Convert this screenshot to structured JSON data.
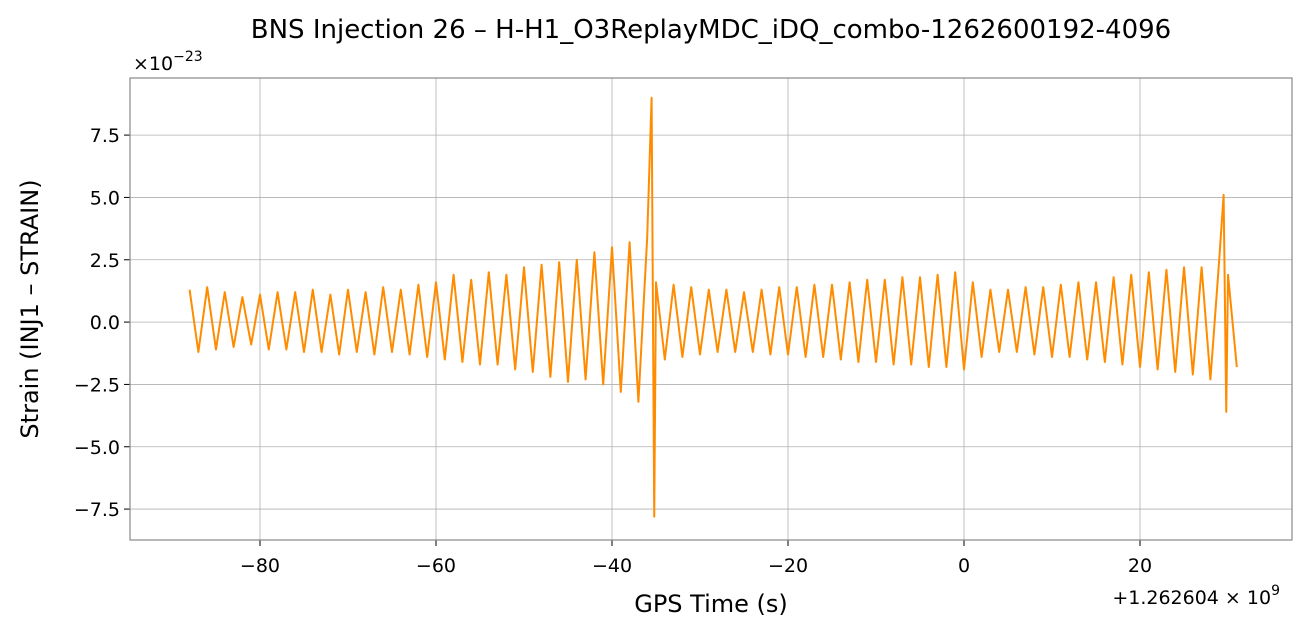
{
  "chart_data": {
    "type": "line",
    "title": "BNS Injection 26 – H-H1_O3ReplayMDC_iDQ_combo-1262600192-4096",
    "xlabel": "GPS Time (s)",
    "ylabel": "Strain (INJ1 – STRAIN)",
    "x_offset": {
      "base": "+1.262604 × 10",
      "exponent": "9"
    },
    "y_offset": {
      "base": "×10",
      "exponent": "−23"
    },
    "grid": true,
    "xlim": [
      -94.77,
      37.27
    ],
    "ylim": [
      -8.74,
      9.79
    ],
    "xticks": [
      {
        "value": -80,
        "label": "−80"
      },
      {
        "value": -60,
        "label": "−60"
      },
      {
        "value": -40,
        "label": "−40"
      },
      {
        "value": -20,
        "label": "−20"
      },
      0,
      20
    ],
    "yticks": [
      {
        "value": -7.5,
        "label": "−7.5"
      },
      {
        "value": -5,
        "label": "−5.0"
      },
      {
        "value": -2.5,
        "label": "−2.5"
      },
      {
        "value": 0,
        "label": "0.0"
      },
      {
        "value": 2.5,
        "label": "2.5"
      },
      {
        "value": 5,
        "label": "5.0"
      },
      {
        "value": 7.5,
        "label": "7.5"
      }
    ],
    "x": [
      -88,
      -87,
      -86,
      -85,
      -84,
      -83,
      -82,
      -81,
      -80,
      -79,
      -78,
      -77,
      -76,
      -75,
      -74,
      -73,
      -72,
      -71,
      -70,
      -69,
      -68,
      -67,
      -66,
      -65,
      -64,
      -63,
      -62,
      -61,
      -60,
      -59,
      -58,
      -57,
      -56,
      -55,
      -54,
      -53,
      -52,
      -51,
      -50,
      -49,
      -48,
      -47,
      -46,
      -45,
      -44,
      -43,
      -42,
      -41,
      -40,
      -39,
      -38,
      -37,
      -36,
      -35.5,
      -35.2,
      -35,
      -34,
      -33,
      -32,
      -31,
      -30,
      -29,
      -28,
      -27,
      -26,
      -25,
      -24,
      -23,
      -22,
      -21,
      -20,
      -19,
      -18,
      -17,
      -16,
      -15,
      -14,
      -13,
      -12,
      -11,
      -10,
      -9,
      -8,
      -7,
      -6,
      -5,
      -4,
      -3,
      -2,
      -1,
      0,
      1,
      2,
      3,
      4,
      5,
      6,
      7,
      8,
      9,
      10,
      11,
      12,
      13,
      14,
      15,
      16,
      17,
      18,
      19,
      20,
      21,
      22,
      23,
      24,
      25,
      26,
      27,
      28,
      29,
      29.5,
      29.8,
      30,
      31
    ],
    "series": [
      {
        "color": "#ff8c00",
        "values": [
          1.3,
          -1.2,
          1.4,
          -1.1,
          1.2,
          -1.0,
          1.0,
          -0.9,
          1.1,
          -1.1,
          1.2,
          -1.1,
          1.2,
          -1.2,
          1.3,
          -1.2,
          1.1,
          -1.3,
          1.3,
          -1.2,
          1.2,
          -1.3,
          1.4,
          -1.2,
          1.3,
          -1.3,
          1.5,
          -1.4,
          1.6,
          -1.5,
          1.9,
          -1.6,
          1.7,
          -1.7,
          2.0,
          -1.7,
          1.9,
          -1.9,
          2.2,
          -2.0,
          2.3,
          -2.2,
          2.4,
          -2.4,
          2.5,
          -2.3,
          2.8,
          -2.5,
          3.0,
          -2.8,
          3.2,
          -3.2,
          3.4,
          9.0,
          -7.8,
          1.6,
          -1.5,
          1.5,
          -1.4,
          1.4,
          -1.3,
          1.3,
          -1.2,
          1.3,
          -1.2,
          1.2,
          -1.2,
          1.3,
          -1.3,
          1.4,
          -1.3,
          1.4,
          -1.4,
          1.5,
          -1.4,
          1.5,
          -1.5,
          1.6,
          -1.6,
          1.7,
          -1.6,
          1.7,
          -1.7,
          1.8,
          -1.7,
          1.8,
          -1.8,
          1.9,
          -1.8,
          2.0,
          -1.9,
          1.6,
          -1.4,
          1.3,
          -1.2,
          1.3,
          -1.2,
          1.4,
          -1.3,
          1.4,
          -1.4,
          1.5,
          -1.4,
          1.6,
          -1.5,
          1.6,
          -1.6,
          1.8,
          -1.7,
          1.9,
          -1.8,
          2.0,
          -1.9,
          2.1,
          -2.0,
          2.2,
          -2.1,
          2.2,
          -2.3,
          2.5,
          5.1,
          -3.6,
          1.9,
          -1.8
        ]
      }
    ]
  }
}
